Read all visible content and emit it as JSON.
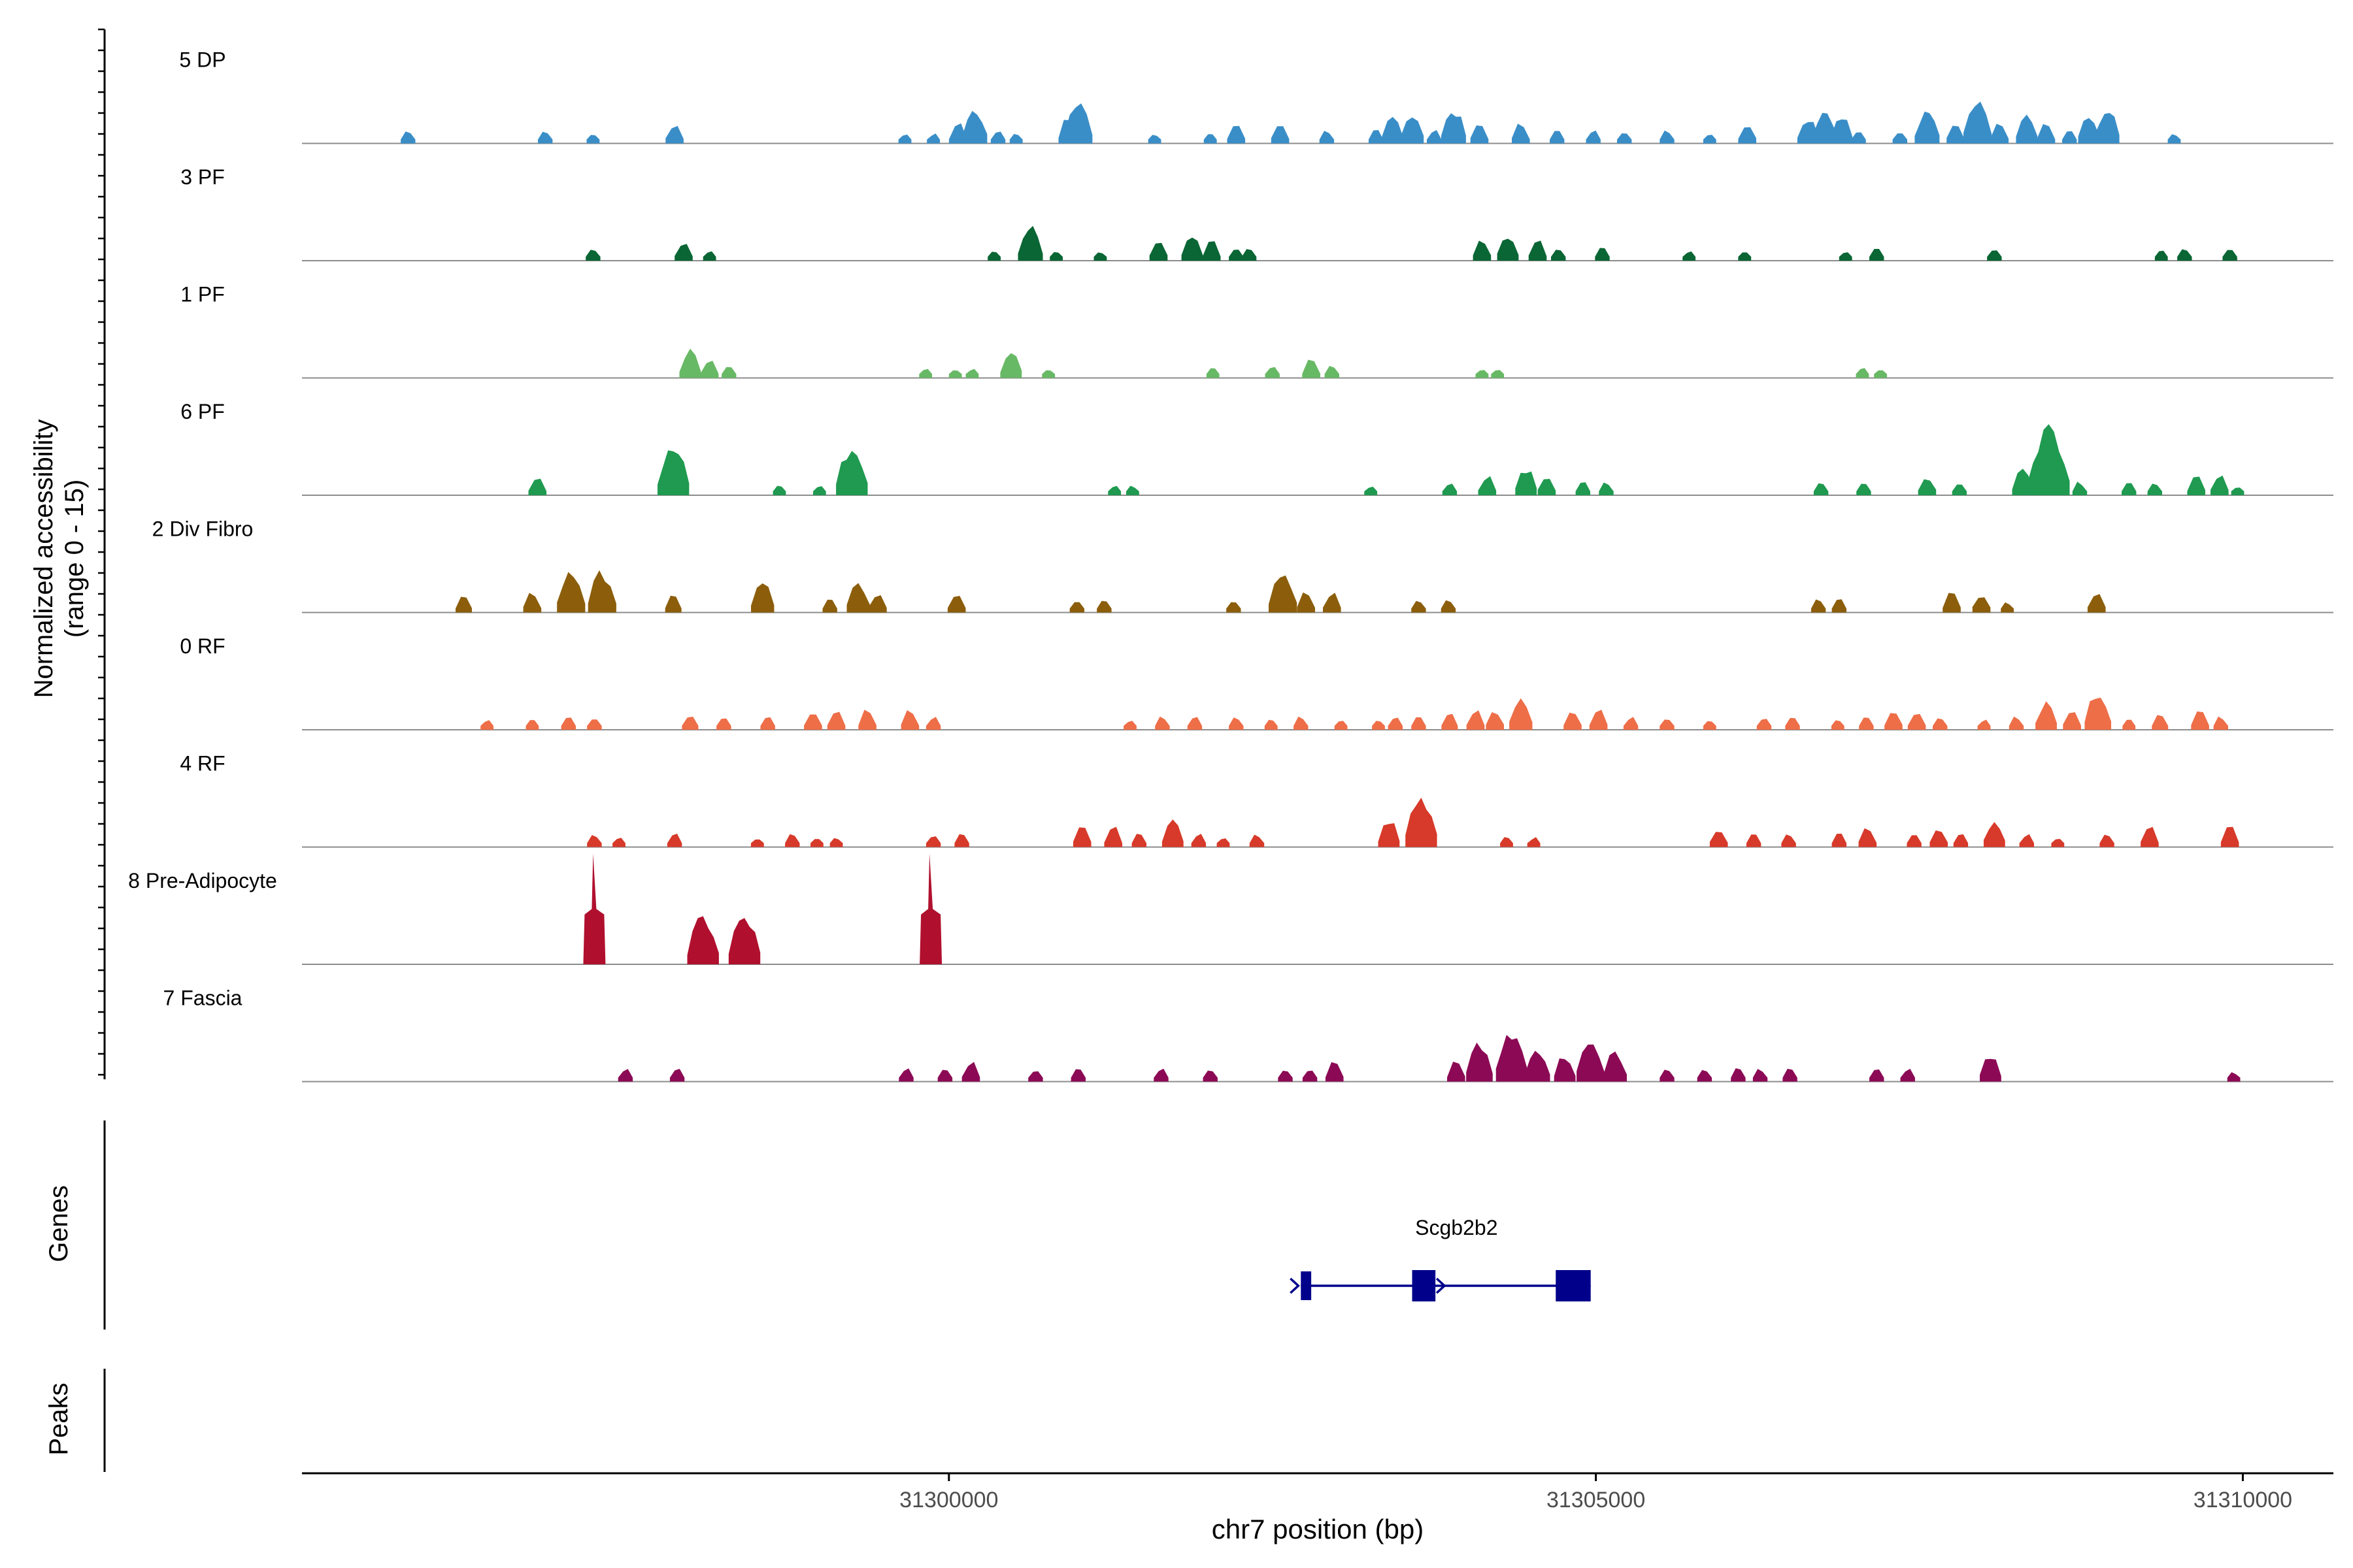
{
  "chart_data": {
    "type": "area",
    "title": "",
    "ylabel_line1": "Normalized accessibility",
    "ylabel_line2": "(range 0 - 15)",
    "xlabel": "chr7 position (bp)",
    "xlim": [
      31295000,
      31310700
    ],
    "ylim": [
      0,
      15
    ],
    "x_ticks": [
      31300000,
      31305000,
      31310000
    ],
    "x_tick_labels": [
      "31300000",
      "31305000",
      "31310000"
    ],
    "genes_label": "Genes",
    "peaks_label": "Peaks",
    "gene": {
      "name": "Scgb2b2",
      "strand": "+",
      "start": 31302720,
      "end": 31304960,
      "exons": [
        [
          31302720,
          31302800
        ],
        [
          31303580,
          31303760
        ],
        [
          31304690,
          31304960
        ]
      ]
    },
    "tracks": [
      {
        "name": "5 DP",
        "color": "#3a8ec8",
        "peaks": [
          [
            31295820,
            2
          ],
          [
            31296880,
            2
          ],
          [
            31297250,
            1.5
          ],
          [
            31297880,
            3
          ],
          [
            31299660,
            1.5
          ],
          [
            31299880,
            1.5
          ],
          [
            31300070,
            3
          ],
          [
            31300200,
            5
          ],
          [
            31300380,
            2
          ],
          [
            31300520,
            1.5
          ],
          [
            31300930,
            4
          ],
          [
            31301000,
            6
          ],
          [
            31301590,
            1.5
          ],
          [
            31302020,
            1.5
          ],
          [
            31302220,
            3
          ],
          [
            31302560,
            3
          ],
          [
            31302920,
            2
          ],
          [
            31303300,
            2
          ],
          [
            31303430,
            4
          ],
          [
            31303580,
            4.5
          ],
          [
            31303750,
            2
          ],
          [
            31303900,
            5
          ],
          [
            31304100,
            3
          ],
          [
            31304420,
            3
          ],
          [
            31304700,
            2
          ],
          [
            31304980,
            2
          ],
          [
            31305220,
            2
          ],
          [
            31305550,
            2
          ],
          [
            31305880,
            1.5
          ],
          [
            31306170,
            3
          ],
          [
            31306640,
            4
          ],
          [
            31306770,
            5
          ],
          [
            31306900,
            4
          ],
          [
            31307030,
            2
          ],
          [
            31307350,
            2
          ],
          [
            31307560,
            5
          ],
          [
            31307780,
            3
          ],
          [
            31307950,
            6
          ],
          [
            31308120,
            3
          ],
          [
            31308330,
            4
          ],
          [
            31308480,
            3
          ],
          [
            31308660,
            2
          ],
          [
            31308810,
            4
          ],
          [
            31308950,
            5
          ],
          [
            31309470,
            1.5
          ]
        ]
      },
      {
        "name": "3 PF",
        "color": "#0a6634",
        "peaks": [
          [
            31297250,
            2
          ],
          [
            31297950,
            3
          ],
          [
            31298150,
            1.5
          ],
          [
            31300350,
            1.5
          ],
          [
            31300630,
            5
          ],
          [
            31300830,
            1.5
          ],
          [
            31301170,
            1.5
          ],
          [
            31301620,
            3
          ],
          [
            31301880,
            4
          ],
          [
            31302030,
            3
          ],
          [
            31302220,
            2
          ],
          [
            31302320,
            2
          ],
          [
            31304120,
            3
          ],
          [
            31304320,
            4
          ],
          [
            31304550,
            3
          ],
          [
            31304710,
            2
          ],
          [
            31305050,
            2
          ],
          [
            31305720,
            1.5
          ],
          [
            31306150,
            1.5
          ],
          [
            31306930,
            1.5
          ],
          [
            31307170,
            2
          ],
          [
            31308080,
            2
          ],
          [
            31309370,
            1.5
          ],
          [
            31309550,
            2
          ],
          [
            31309900,
            2
          ]
        ]
      },
      {
        "name": "1 PF",
        "color": "#68b965",
        "peaks": [
          [
            31298000,
            4
          ],
          [
            31298150,
            3
          ],
          [
            31298300,
            2
          ],
          [
            31299820,
            1.5
          ],
          [
            31300050,
            1.5
          ],
          [
            31300180,
            1.5
          ],
          [
            31300480,
            4
          ],
          [
            31300770,
            1.5
          ],
          [
            31302040,
            1.5
          ],
          [
            31302500,
            2
          ],
          [
            31302800,
            3
          ],
          [
            31302960,
            2
          ],
          [
            31304120,
            1.5
          ],
          [
            31304240,
            1.5
          ],
          [
            31307060,
            1.5
          ],
          [
            31307200,
            1.5
          ]
        ]
      },
      {
        "name": "6 PF",
        "color": "#1f9a50",
        "peaks": [
          [
            31296820,
            3
          ],
          [
            31297870,
            7
          ],
          [
            31298690,
            1.5
          ],
          [
            31299000,
            1.5
          ],
          [
            31299250,
            7
          ],
          [
            31301280,
            1.5
          ],
          [
            31301420,
            1.5
          ],
          [
            31303260,
            1.5
          ],
          [
            31303870,
            2
          ],
          [
            31304160,
            3
          ],
          [
            31304460,
            4
          ],
          [
            31304620,
            3
          ],
          [
            31304900,
            2
          ],
          [
            31305080,
            2
          ],
          [
            31306740,
            2
          ],
          [
            31307070,
            2
          ],
          [
            31307560,
            3
          ],
          [
            31307810,
            2
          ],
          [
            31308300,
            4
          ],
          [
            31308500,
            10
          ],
          [
            31308740,
            2
          ],
          [
            31309120,
            2
          ],
          [
            31309320,
            2
          ],
          [
            31309640,
            3
          ],
          [
            31309820,
            3
          ],
          [
            31309960,
            1.5
          ]
        ]
      },
      {
        "name": "2 Div Fibro",
        "color": "#8c5e0c",
        "peaks": [
          [
            31296250,
            2.5
          ],
          [
            31296780,
            3
          ],
          [
            31297080,
            6
          ],
          [
            31297320,
            6
          ],
          [
            31297870,
            2.5
          ],
          [
            31298560,
            4.5
          ],
          [
            31299080,
            2
          ],
          [
            31299300,
            4.5
          ],
          [
            31299450,
            3
          ],
          [
            31300060,
            3
          ],
          [
            31300990,
            2
          ],
          [
            31301200,
            2
          ],
          [
            31302200,
            2
          ],
          [
            31302580,
            6
          ],
          [
            31302760,
            3
          ],
          [
            31302960,
            3
          ],
          [
            31303630,
            2
          ],
          [
            31303860,
            2
          ],
          [
            31306720,
            2
          ],
          [
            31306880,
            2
          ],
          [
            31307750,
            3
          ],
          [
            31307980,
            3
          ],
          [
            31308180,
            1.5
          ],
          [
            31308870,
            3
          ]
        ]
      },
      {
        "name": "0 RF",
        "color": "#ee6e48",
        "peaks": [
          [
            31296430,
            1.5
          ],
          [
            31296780,
            1.5
          ],
          [
            31297060,
            2
          ],
          [
            31297260,
            2
          ],
          [
            31298000,
            2.5
          ],
          [
            31298260,
            2
          ],
          [
            31298600,
            2
          ],
          [
            31298950,
            3
          ],
          [
            31299130,
            3
          ],
          [
            31299370,
            3
          ],
          [
            31299700,
            3
          ],
          [
            31299880,
            2
          ],
          [
            31301400,
            1.5
          ],
          [
            31301650,
            2
          ],
          [
            31301900,
            2
          ],
          [
            31302220,
            2
          ],
          [
            31302490,
            1.5
          ],
          [
            31302720,
            2
          ],
          [
            31303030,
            1.5
          ],
          [
            31303320,
            1.5
          ],
          [
            31303450,
            2
          ],
          [
            31303630,
            2
          ],
          [
            31303870,
            2.5
          ],
          [
            31304070,
            3
          ],
          [
            31304220,
            3
          ],
          [
            31304420,
            4.5
          ],
          [
            31304820,
            3
          ],
          [
            31305020,
            3
          ],
          [
            31305270,
            2
          ],
          [
            31305550,
            2
          ],
          [
            31305880,
            1.5
          ],
          [
            31306300,
            2
          ],
          [
            31306520,
            2
          ],
          [
            31306870,
            1.5
          ],
          [
            31307090,
            2
          ],
          [
            31307300,
            3
          ],
          [
            31307480,
            3
          ],
          [
            31307660,
            2
          ],
          [
            31308000,
            1.5
          ],
          [
            31308250,
            2
          ],
          [
            31308480,
            4
          ],
          [
            31308680,
            3
          ],
          [
            31308880,
            5.5
          ],
          [
            31309120,
            1.5
          ],
          [
            31309360,
            2.5
          ],
          [
            31309670,
            3
          ],
          [
            31309830,
            2
          ]
        ]
      },
      {
        "name": "4 RF",
        "color": "#d73a2a",
        "peaks": [
          [
            31297260,
            2
          ],
          [
            31297450,
            1.5
          ],
          [
            31297880,
            2
          ],
          [
            31298520,
            1.5
          ],
          [
            31298790,
            2
          ],
          [
            31298980,
            1.5
          ],
          [
            31299130,
            1.5
          ],
          [
            31299880,
            2
          ],
          [
            31300100,
            2
          ],
          [
            31301030,
            3
          ],
          [
            31301270,
            3
          ],
          [
            31301470,
            2
          ],
          [
            31301730,
            4
          ],
          [
            31301930,
            2
          ],
          [
            31302120,
            1.5
          ],
          [
            31302380,
            2
          ],
          [
            31303400,
            4
          ],
          [
            31303650,
            7
          ],
          [
            31304310,
            1.5
          ],
          [
            31304520,
            1.5
          ],
          [
            31305950,
            3
          ],
          [
            31306220,
            2
          ],
          [
            31306490,
            2
          ],
          [
            31306880,
            2
          ],
          [
            31307100,
            3
          ],
          [
            31307460,
            2
          ],
          [
            31307650,
            3
          ],
          [
            31307820,
            2
          ],
          [
            31308080,
            4
          ],
          [
            31308330,
            2
          ],
          [
            31308570,
            1.5
          ],
          [
            31308950,
            2
          ],
          [
            31309280,
            3
          ],
          [
            31309900,
            3
          ]
        ]
      },
      {
        "name": "8 Pre-Adipocyte",
        "color": "#b0102e",
        "peaks": [
          [
            31297260,
            15
          ],
          [
            31298100,
            7
          ],
          [
            31298420,
            7
          ],
          [
            31299860,
            15
          ]
        ]
      },
      {
        "name": "7 Fascia",
        "color": "#8c0a55",
        "peaks": [
          [
            31297500,
            2
          ],
          [
            31297900,
            2
          ],
          [
            31299670,
            2
          ],
          [
            31299970,
            2
          ],
          [
            31300170,
            3
          ],
          [
            31300670,
            2
          ],
          [
            31301000,
            2
          ],
          [
            31301640,
            2
          ],
          [
            31302020,
            2
          ],
          [
            31302600,
            2
          ],
          [
            31302790,
            2
          ],
          [
            31302980,
            3
          ],
          [
            31303920,
            3
          ],
          [
            31304100,
            5.5
          ],
          [
            31304350,
            7
          ],
          [
            31304550,
            5
          ],
          [
            31304760,
            4
          ],
          [
            31304960,
            6
          ],
          [
            31305150,
            4.5
          ],
          [
            31305550,
            2
          ],
          [
            31305840,
            2
          ],
          [
            31306100,
            2
          ],
          [
            31306270,
            2
          ],
          [
            31306500,
            2
          ],
          [
            31307170,
            2
          ],
          [
            31307410,
            2
          ],
          [
            31308050,
            4
          ],
          [
            31309930,
            1.5
          ]
        ]
      }
    ]
  }
}
